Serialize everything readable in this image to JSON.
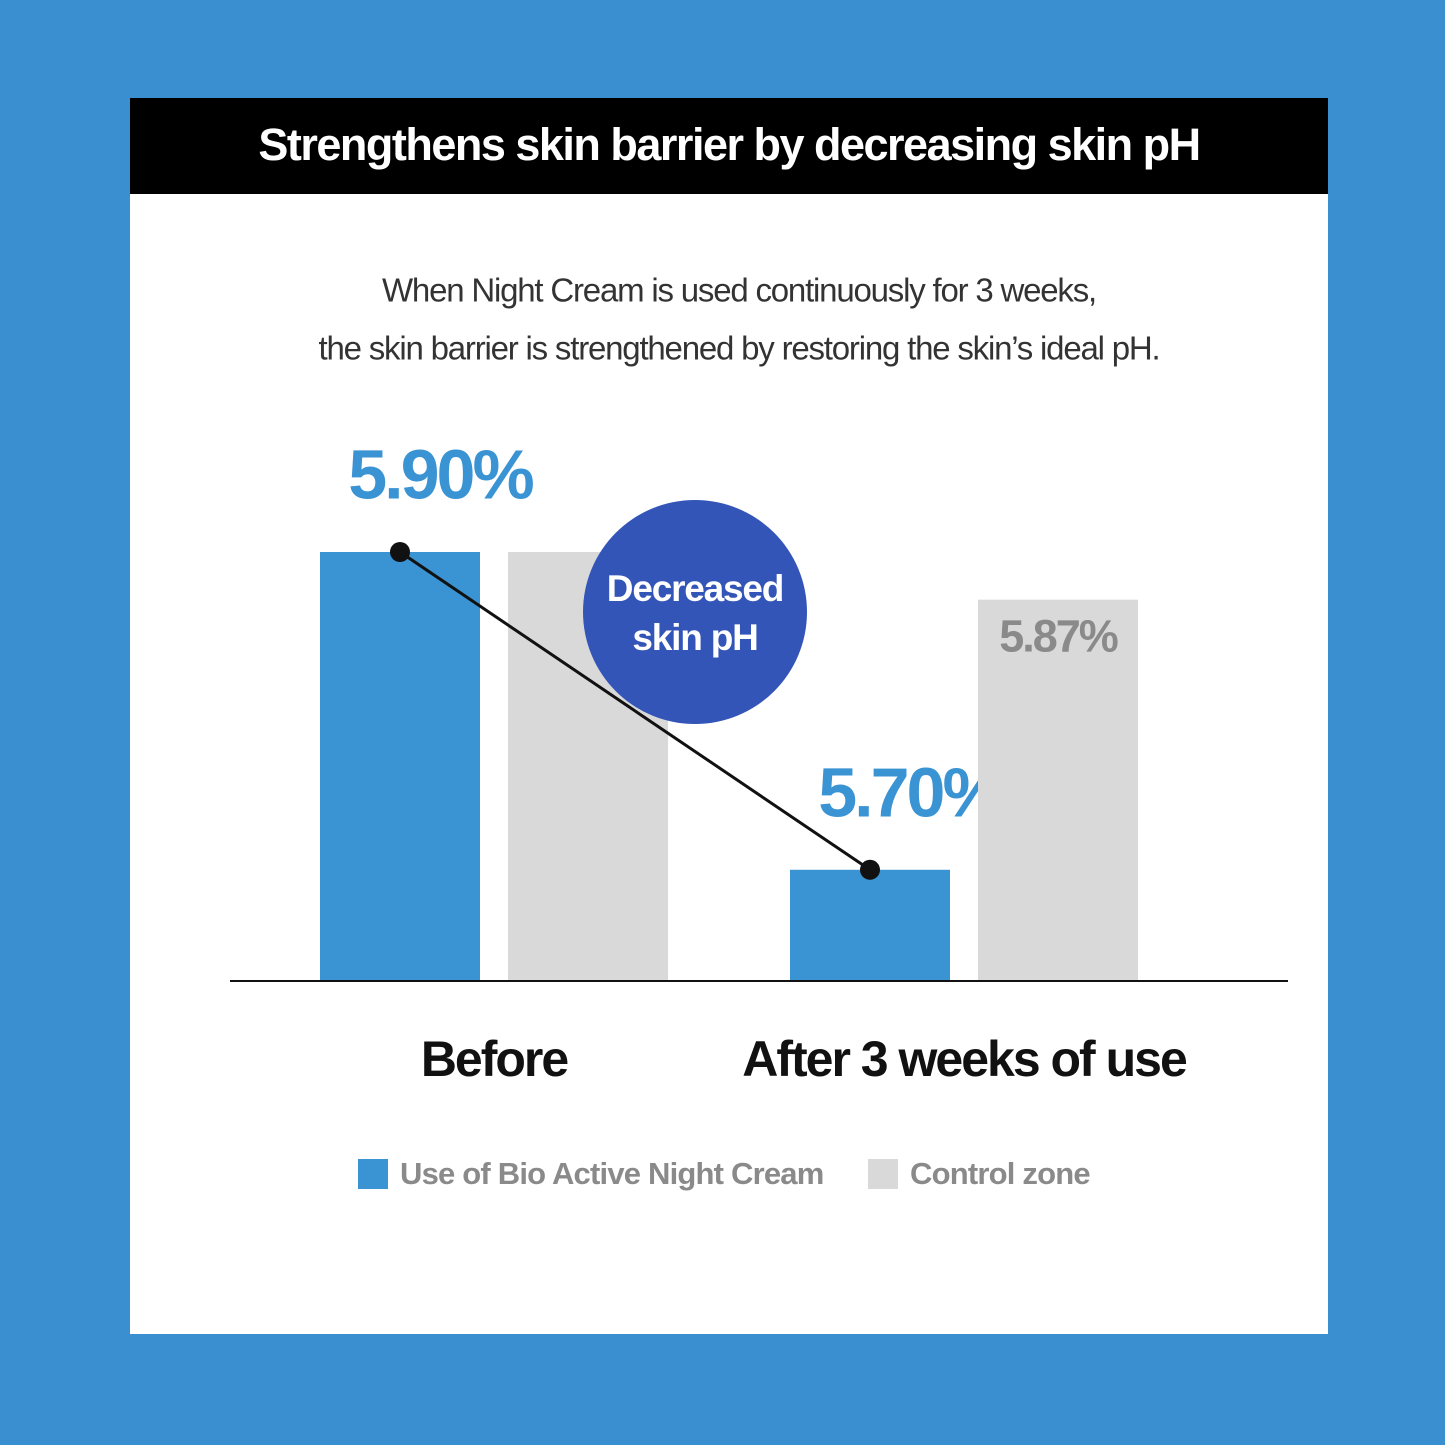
{
  "chart_data": {
    "type": "bar",
    "title": "Strengthens skin barrier by decreasing skin pH",
    "subtitle": [
      "When Night Cream is used continuously for 3 weeks,",
      "the skin barrier is strengthened by restoring the skin’s ideal pH."
    ],
    "annotation": [
      "Decreased",
      "skin pH"
    ],
    "categories": [
      "Before",
      "After 3 weeks of use"
    ],
    "series": [
      {
        "name": "Use of Bio Active Night Cream",
        "color": "#3a93d3",
        "values": [
          5.9,
          5.7
        ],
        "value_labels": [
          "5.90%",
          "5.70%"
        ]
      },
      {
        "name": "Control zone",
        "color": "#d9d9d9",
        "values": [
          5.9,
          5.87
        ],
        "value_labels": [
          null,
          "5.87%"
        ]
      }
    ],
    "ylim": [
      5.63,
      5.9
    ]
  }
}
